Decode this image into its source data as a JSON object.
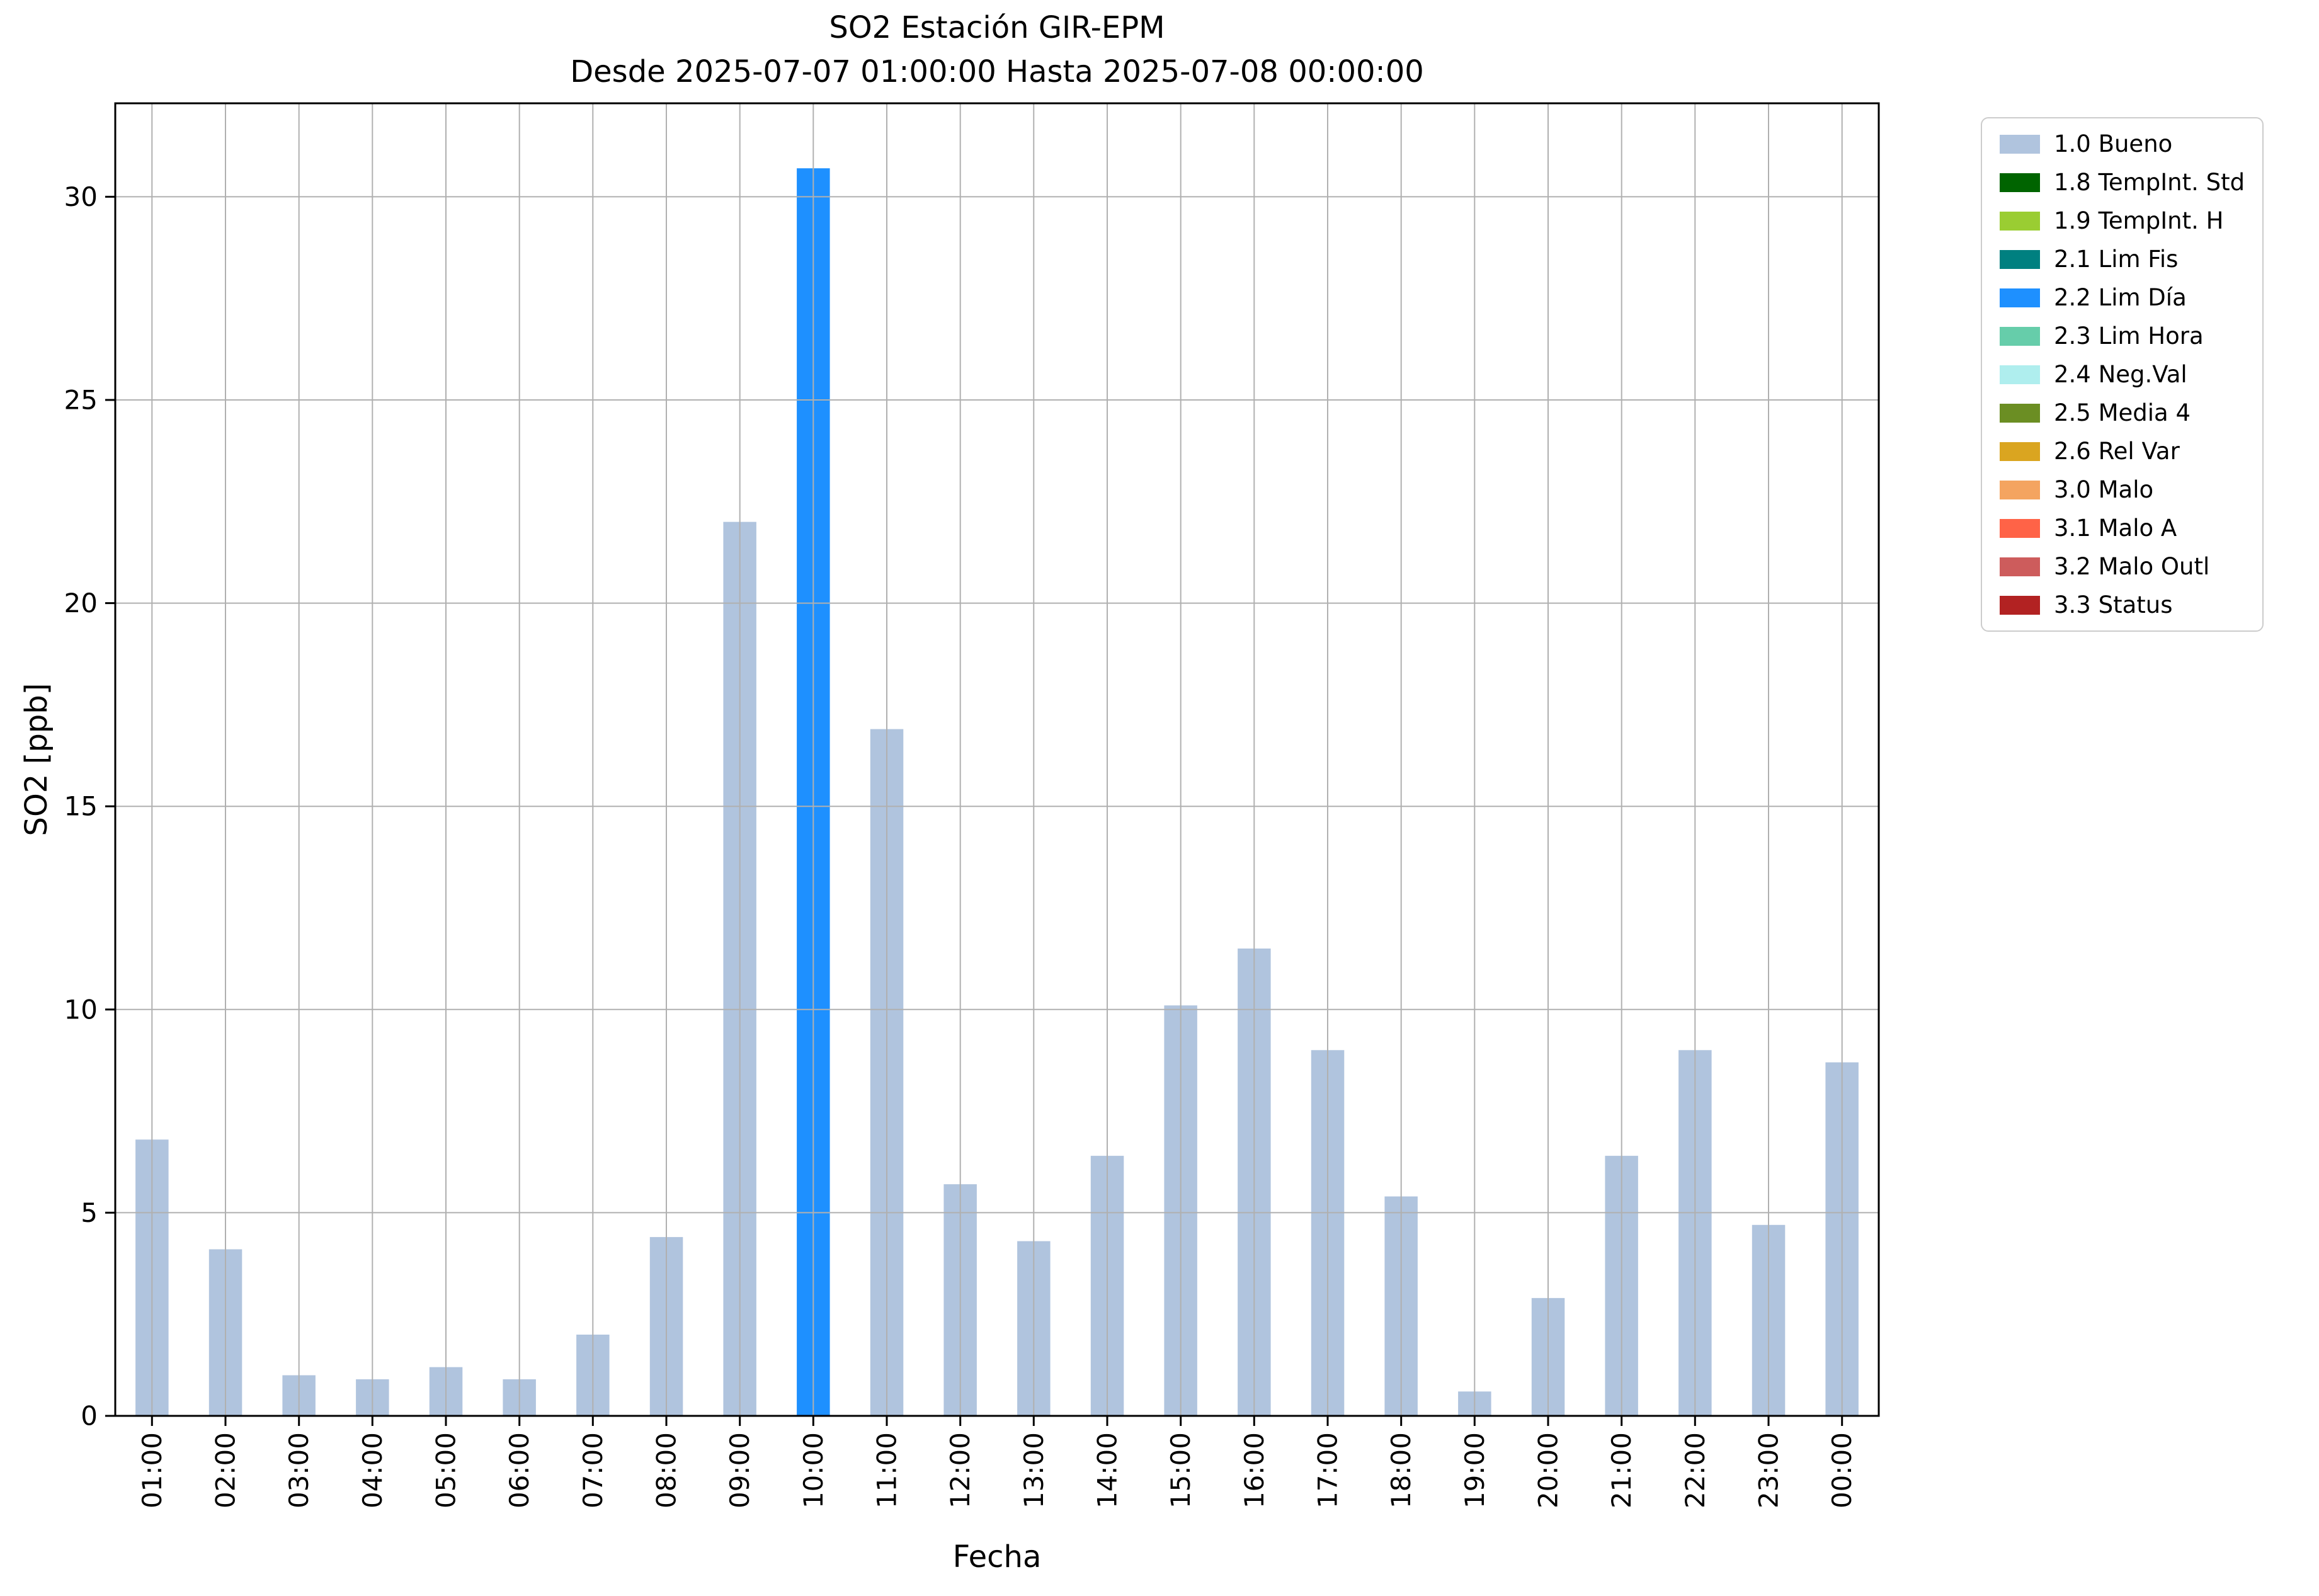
{
  "chart_data": {
    "type": "bar",
    "title": "SO2 Estación GIR-EPM",
    "subtitle": "Desde 2025-07-07 01:00:00 Hasta 2025-07-08 00:00:00",
    "xlabel": "Fecha",
    "ylabel": "SO2 [ppb]",
    "ylim": [
      0,
      32.3
    ],
    "yticks": [
      0,
      5,
      10,
      15,
      20,
      25,
      30
    ],
    "grid": true,
    "bar_width_fraction": 0.45,
    "default_color": "#b0c4de",
    "colors": {
      "grid": "#b0b0b0",
      "axis": "#000000",
      "background": "#ffffff"
    },
    "categories": [
      "01:00",
      "02:00",
      "03:00",
      "04:00",
      "05:00",
      "06:00",
      "07:00",
      "08:00",
      "09:00",
      "10:00",
      "11:00",
      "12:00",
      "13:00",
      "14:00",
      "15:00",
      "16:00",
      "17:00",
      "18:00",
      "19:00",
      "20:00",
      "21:00",
      "22:00",
      "23:00",
      "00:00"
    ],
    "values": [
      6.8,
      4.1,
      1.0,
      0.9,
      1.2,
      0.9,
      2.0,
      4.4,
      22.0,
      30.7,
      16.9,
      5.7,
      4.3,
      6.4,
      10.1,
      11.5,
      9.0,
      5.4,
      0.6,
      2.9,
      6.4,
      9.0,
      4.7,
      8.7
    ],
    "bar_status": [
      "1.0 Bueno",
      "1.0 Bueno",
      "1.0 Bueno",
      "1.0 Bueno",
      "1.0 Bueno",
      "1.0 Bueno",
      "1.0 Bueno",
      "1.0 Bueno",
      "1.0 Bueno",
      "2.2 Lim Día",
      "1.0 Bueno",
      "1.0 Bueno",
      "1.0 Bueno",
      "1.0 Bueno",
      "1.0 Bueno",
      "1.0 Bueno",
      "1.0 Bueno",
      "1.0 Bueno",
      "1.0 Bueno",
      "1.0 Bueno",
      "1.0 Bueno",
      "1.0 Bueno",
      "1.0 Bueno",
      "1.0 Bueno"
    ],
    "legend": {
      "position": "outside-right",
      "entries": [
        {
          "label": "1.0 Bueno",
          "color": "#b0c4de"
        },
        {
          "label": "1.8 TempInt. Std",
          "color": "#006400"
        },
        {
          "label": "1.9 TempInt. H",
          "color": "#9acd32"
        },
        {
          "label": "2.1 Lim Fis",
          "color": "#008080"
        },
        {
          "label": "2.2 Lim Día",
          "color": "#1e90ff"
        },
        {
          "label": "2.3 Lim Hora",
          "color": "#66cdaa"
        },
        {
          "label": "2.4 Neg.Val",
          "color": "#afeeee"
        },
        {
          "label": "2.5 Media 4",
          "color": "#6b8e23"
        },
        {
          "label": "2.6 Rel Var",
          "color": "#daa520"
        },
        {
          "label": "3.0 Malo",
          "color": "#f4a460"
        },
        {
          "label": "3.1 Malo A",
          "color": "#ff6347"
        },
        {
          "label": "3.2 Malo Outl",
          "color": "#cd5c5c"
        },
        {
          "label": "3.3 Status",
          "color": "#b22222"
        }
      ]
    }
  }
}
